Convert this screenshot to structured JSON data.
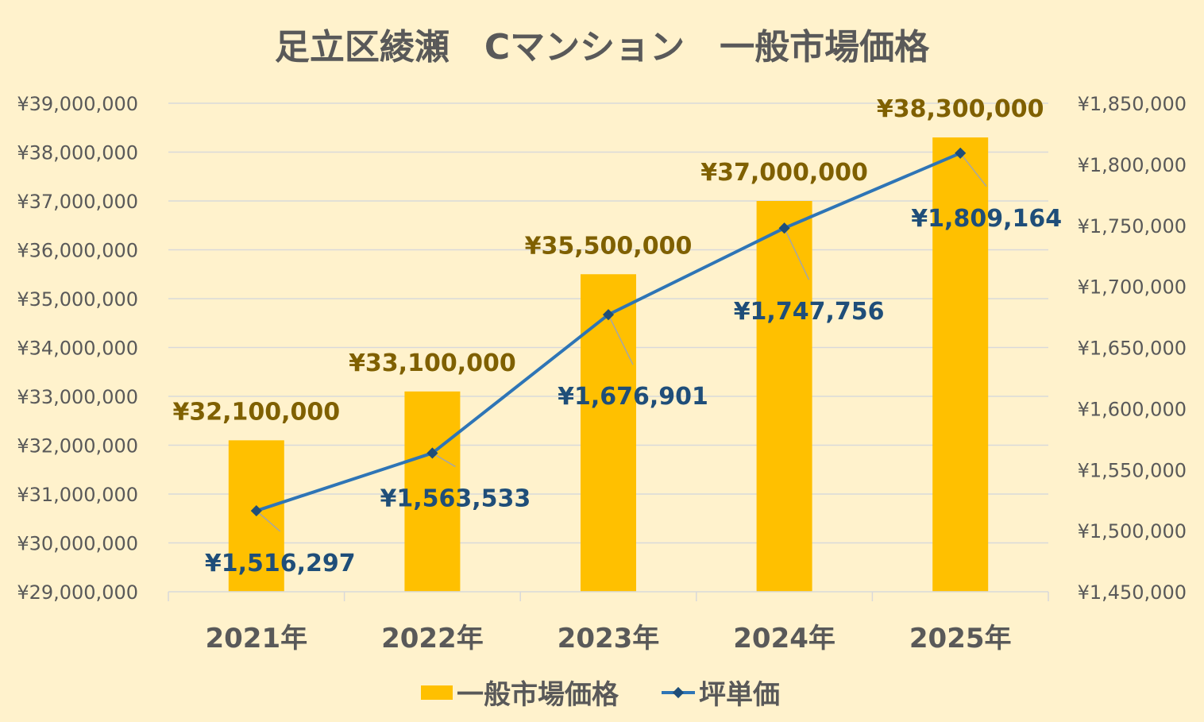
{
  "chart_data": {
    "type": "bar+line",
    "title": "足立区綾瀬　Cマンション　一般市場価格",
    "categories": [
      "2021年",
      "2022年",
      "2023年",
      "2024年",
      "2025年"
    ],
    "series": [
      {
        "name": "一般市場価格",
        "type": "bar",
        "axis": "left",
        "values": [
          32100000,
          33100000,
          35500000,
          37000000,
          38300000
        ],
        "labels": [
          "¥32,100,000",
          "¥33,100,000",
          "¥35,500,000",
          "¥37,000,000",
          "¥38,300,000"
        ]
      },
      {
        "name": "坪単価",
        "type": "line",
        "axis": "right",
        "values": [
          1516297,
          1563533,
          1676901,
          1747756,
          1809164
        ],
        "labels": [
          "¥1,516,297",
          "¥1,563,533",
          "¥1,676,901",
          "¥1,747,756",
          "¥1,809,164"
        ]
      }
    ],
    "left_axis": {
      "ylim": [
        29000000,
        39000000
      ],
      "step": 1000000,
      "ticks": [
        "¥29,000,000",
        "¥30,000,000",
        "¥31,000,000",
        "¥32,000,000",
        "¥33,000,000",
        "¥34,000,000",
        "¥35,000,000",
        "¥36,000,000",
        "¥37,000,000",
        "¥38,000,000",
        "¥39,000,000"
      ]
    },
    "right_axis": {
      "ylim": [
        1450000,
        1850000
      ],
      "step": 50000,
      "ticks": [
        "¥1,450,000",
        "¥1,500,000",
        "¥1,550,000",
        "¥1,600,000",
        "¥1,650,000",
        "¥1,700,000",
        "¥1,750,000",
        "¥1,800,000",
        "¥1,850,000"
      ]
    },
    "grid": true,
    "legend": "bottom",
    "colors": {
      "bar": "#FFC000",
      "line": "#2E75B6",
      "marker": "#1F4E79",
      "bar_label": "#7F6000",
      "line_label": "#1F4E79",
      "grid": "#D9D9D9"
    }
  }
}
